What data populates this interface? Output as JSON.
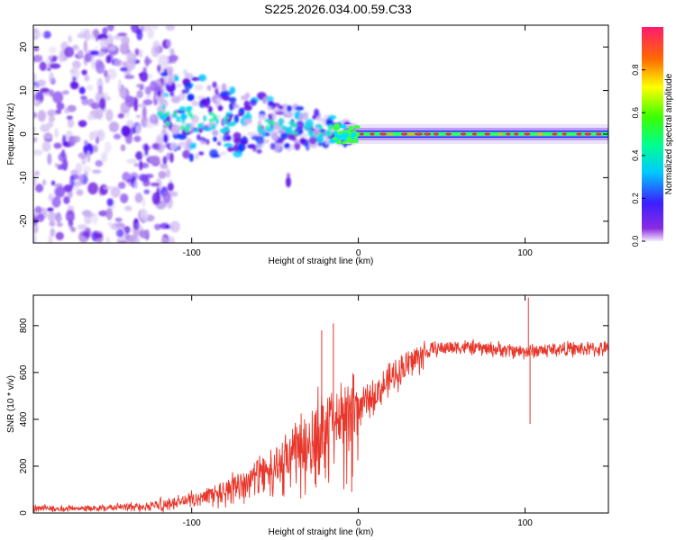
{
  "title": "S225.2026.034.00.59.C33",
  "chart_data": [
    {
      "type": "heatmap",
      "name": "spectrogram",
      "xlabel": "Height of straight line (km)",
      "ylabel": "Frequency (Hz)",
      "xlim": [
        -195,
        150
      ],
      "ylim": [
        -25,
        25
      ],
      "xticks": [
        -100,
        0,
        100
      ],
      "yticks": [
        -20,
        -10,
        0,
        10,
        20
      ],
      "colorbar": {
        "label": "Normalized spectral amplitude",
        "range": [
          0,
          1
        ],
        "ticks": [
          0.0,
          0.2,
          0.4,
          0.6,
          0.8
        ],
        "tick_labels": [
          "0.0",
          "0.2",
          "0.4",
          "0.6",
          "0.8"
        ]
      },
      "features": {
        "noise_region": [
          -195,
          -120
        ],
        "transition_region": [
          -120,
          -20
        ],
        "stable_line": {
          "x_start": 0,
          "x_end": 150,
          "frequency": 0,
          "amplitude": 0.9
        },
        "isolated_blob": {
          "x": -42,
          "frequency": -11
        }
      }
    },
    {
      "type": "line",
      "name": "snr",
      "xlabel": "Height of straight line (km)",
      "ylabel": "SNR (10 * v/v)",
      "xlim": [
        -195,
        150
      ],
      "ylim": [
        0,
        930
      ],
      "xticks": [
        -100,
        0,
        100
      ],
      "yticks": [
        0,
        200,
        400,
        600,
        800
      ],
      "color": "#e8362a",
      "series": [
        {
          "name": "SNR trend",
          "x": [
            -195,
            -160,
            -130,
            -115,
            -100,
            -85,
            -70,
            -55,
            -45,
            -35,
            -25,
            -15,
            -5,
            5,
            15,
            25,
            35,
            45,
            60,
            80,
            100,
            120,
            150
          ],
          "y": [
            20,
            22,
            30,
            40,
            60,
            90,
            130,
            180,
            220,
            280,
            360,
            390,
            420,
            470,
            540,
            610,
            660,
            700,
            710,
            700,
            690,
            700,
            700
          ]
        }
      ],
      "spikes": [
        {
          "x": 102,
          "y": 920
        },
        {
          "x": 103,
          "y": 380
        },
        {
          "x": -15,
          "y": 810
        },
        {
          "x": -22,
          "y": 780
        },
        {
          "x": -4,
          "y": 90
        }
      ]
    }
  ]
}
